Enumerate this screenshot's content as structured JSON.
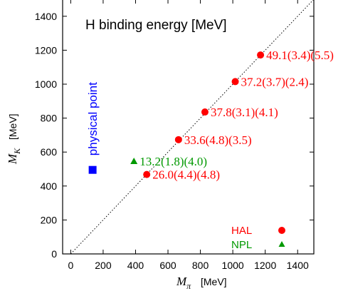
{
  "chart_data": {
    "type": "scatter",
    "title": "H binding energy [MeV]",
    "xlabel": {
      "symbol": "M",
      "subscript": "π",
      "unit": "[MeV]"
    },
    "ylabel": {
      "symbol": "M",
      "subscript": "K",
      "unit": "[MeV]"
    },
    "xlim": [
      -50,
      1500
    ],
    "ylim": [
      0,
      1500
    ],
    "x_ticks": [
      0,
      200,
      400,
      600,
      800,
      1000,
      1200,
      1400
    ],
    "y_ticks": [
      0,
      200,
      400,
      600,
      800,
      1000,
      1200,
      1400
    ],
    "grid": false,
    "diagonal_line": true,
    "physical_point": {
      "label": "physical point",
      "x": 135,
      "y": 495,
      "color": "#0000ff"
    },
    "series": [
      {
        "name": "HAL",
        "color": "#ff0000",
        "marker": "circle",
        "points": [
          {
            "x": 469,
            "y": 468,
            "label": "26.0(4.4)(4.8)"
          },
          {
            "x": 665,
            "y": 673,
            "label": "33.6(4.8)(3.5)"
          },
          {
            "x": 828,
            "y": 836,
            "label": "37.8(3.1)(4.1)"
          },
          {
            "x": 1015,
            "y": 1015,
            "label": "37.2(3.7)(2.4)"
          },
          {
            "x": 1171,
            "y": 1172,
            "label": "49.1(3.4)(5.5)"
          }
        ]
      },
      {
        "name": "NPL",
        "color": "#009900",
        "marker": "triangle",
        "points": [
          {
            "x": 390,
            "y": 546,
            "label": "13.2(1.8)(4.0)"
          }
        ]
      }
    ],
    "legend_position": "bottom-right"
  }
}
